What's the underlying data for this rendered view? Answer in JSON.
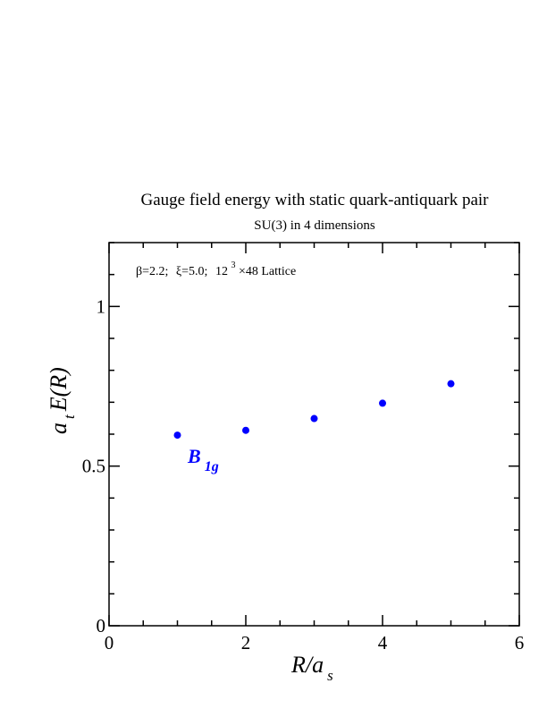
{
  "chart_data": {
    "type": "scatter",
    "title": "Gauge field energy with static quark-antiquark pair",
    "subtitle": "SU(3) in 4 dimensions",
    "annotation": {
      "beta": "β=2.2;",
      "xi": "ξ=5.0;",
      "lattice_prefix": "12",
      "lattice_exp": "3",
      "lattice_suffix": "×48 Lattice"
    },
    "xlabel": {
      "main": "R/a",
      "sub": "s"
    },
    "ylabel": {
      "a": "a",
      "sub": "t",
      "main": "E(R)"
    },
    "xlim": [
      0,
      6
    ],
    "ylim": [
      0,
      1.2
    ],
    "x_ticks": [
      {
        "value": 0,
        "label": "0"
      },
      {
        "value": 2,
        "label": "2"
      },
      {
        "value": 4,
        "label": "4"
      },
      {
        "value": 6,
        "label": "6"
      }
    ],
    "y_ticks": [
      {
        "value": 0,
        "label": "0"
      },
      {
        "value": 0.5,
        "label": "0.5"
      },
      {
        "value": 1,
        "label": "1"
      }
    ],
    "series": [
      {
        "label_main": "B",
        "label_sub": "1g",
        "color": "#0000ff",
        "x": [
          1,
          2,
          3,
          4,
          5
        ],
        "y": [
          0.597,
          0.612,
          0.649,
          0.697,
          0.758
        ]
      }
    ]
  }
}
